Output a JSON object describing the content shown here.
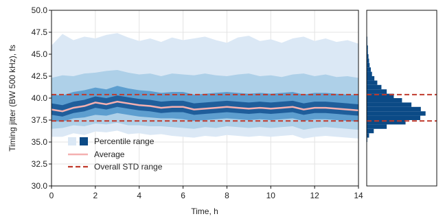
{
  "chart_data": {
    "type": "area",
    "xlabel": "Time, h",
    "ylabel": "Timing jitter (BW 500 kHz), fs",
    "xlim": [
      0,
      14
    ],
    "ylim": [
      30.0,
      50.0
    ],
    "xticks": [
      0,
      2,
      4,
      6,
      8,
      10,
      12,
      14
    ],
    "xtick_labels": [
      "0",
      "2",
      "4",
      "6",
      "8",
      "10",
      "12",
      "14"
    ],
    "yticks": [
      30.0,
      32.5,
      35.0,
      37.5,
      40.0,
      42.5,
      45.0,
      47.5,
      50.0
    ],
    "ytick_labels": [
      "30.0",
      "32.5",
      "35.0",
      "37.5",
      "40.0",
      "42.5",
      "45.0",
      "47.5",
      "50.0"
    ],
    "grid": true,
    "legend_position": "lower-left",
    "legend": {
      "percentile_label": "Percentile range",
      "average_label": "Average",
      "std_label": "Overall STD range"
    },
    "colors": {
      "band_outer": "#dbe8f5",
      "band_2": "#aed0e8",
      "band_3": "#5d9ecf",
      "band_4": "#1f5e9b",
      "band_core": "#08306b",
      "average": "#f4b0b0",
      "std": "#c0392b",
      "histogram": "#0b4a86",
      "grid": "#e3e3e3"
    },
    "overall_std_range": [
      37.4,
      40.4
    ],
    "average": {
      "x": [
        0,
        0.5,
        1.0,
        1.5,
        2.0,
        2.5,
        3.0,
        3.5,
        4.0,
        4.5,
        5.0,
        5.5,
        6.0,
        6.5,
        7.0,
        7.5,
        8.0,
        8.5,
        9.0,
        9.5,
        10.0,
        10.5,
        11.0,
        11.5,
        12.0,
        12.5,
        13.0,
        13.5,
        14.0
      ],
      "y": [
        38.7,
        38.5,
        38.9,
        39.1,
        39.5,
        39.3,
        39.6,
        39.4,
        39.2,
        39.1,
        38.9,
        39.0,
        39.0,
        38.7,
        38.8,
        38.9,
        39.0,
        38.9,
        38.8,
        38.9,
        38.8,
        38.9,
        39.0,
        38.7,
        38.9,
        38.9,
        38.8,
        38.7,
        38.6
      ]
    },
    "percentile_bands": {
      "x": [
        0,
        0.5,
        1.0,
        1.5,
        2.0,
        2.5,
        3.0,
        3.5,
        4.0,
        4.5,
        5.0,
        5.5,
        6.0,
        6.5,
        7.0,
        7.5,
        8.0,
        8.5,
        9.0,
        9.5,
        10.0,
        10.5,
        11.0,
        11.5,
        12.0,
        12.5,
        13.0,
        13.5,
        14.0
      ],
      "p0_5": [
        35.6,
        35.6,
        36.0,
        35.8,
        36.2,
        36.1,
        36.3,
        35.9,
        36.0,
        35.8,
        35.9,
        35.7,
        35.6,
        35.5,
        35.7,
        35.6,
        35.8,
        35.7,
        35.6,
        35.7,
        35.6,
        35.7,
        35.8,
        35.4,
        35.6,
        35.7,
        35.6,
        35.5,
        35.4
      ],
      "p99_5": [
        46.0,
        47.3,
        46.6,
        47.0,
        46.8,
        47.2,
        47.4,
        46.9,
        46.5,
        46.8,
        46.4,
        46.9,
        46.6,
        46.8,
        47.0,
        46.6,
        46.3,
        46.9,
        47.1,
        46.5,
        46.7,
        46.3,
        46.8,
        47.0,
        46.5,
        46.8,
        46.4,
        46.6,
        46.2
      ],
      "p5": [
        36.5,
        36.6,
        36.9,
        36.8,
        37.1,
        37.0,
        37.2,
        36.9,
        36.9,
        36.8,
        36.8,
        36.7,
        36.6,
        36.5,
        36.7,
        36.6,
        36.8,
        36.7,
        36.6,
        36.7,
        36.6,
        36.7,
        36.8,
        36.4,
        36.6,
        36.7,
        36.6,
        36.5,
        36.4
      ],
      "p95": [
        42.3,
        42.6,
        42.5,
        42.8,
        42.9,
        43.1,
        43.2,
        42.9,
        42.7,
        42.8,
        42.5,
        42.8,
        42.7,
        42.6,
        42.8,
        42.6,
        42.5,
        42.7,
        42.8,
        42.5,
        42.6,
        42.4,
        42.7,
        42.8,
        42.5,
        42.7,
        42.4,
        42.5,
        42.3
      ],
      "p16": [
        37.4,
        37.3,
        37.7,
        37.8,
        38.1,
        38.0,
        38.3,
        38.1,
        37.9,
        37.8,
        37.7,
        37.7,
        37.6,
        37.4,
        37.5,
        37.6,
        37.7,
        37.6,
        37.5,
        37.6,
        37.5,
        37.6,
        37.7,
        37.4,
        37.6,
        37.6,
        37.5,
        37.4,
        37.3
      ],
      "p84": [
        40.4,
        40.3,
        40.7,
        40.9,
        41.2,
        41.0,
        41.4,
        41.1,
        40.9,
        40.8,
        40.6,
        40.7,
        40.7,
        40.4,
        40.5,
        40.6,
        40.7,
        40.6,
        40.5,
        40.6,
        40.5,
        40.6,
        40.7,
        40.4,
        40.6,
        40.6,
        40.5,
        40.4,
        40.3
      ],
      "p33": [
        38.1,
        37.9,
        38.3,
        38.5,
        38.9,
        38.7,
        39.0,
        38.8,
        38.6,
        38.5,
        38.3,
        38.4,
        38.4,
        38.1,
        38.2,
        38.3,
        38.4,
        38.3,
        38.2,
        38.3,
        38.2,
        38.3,
        38.4,
        38.1,
        38.3,
        38.3,
        38.2,
        38.1,
        38.0
      ],
      "p67": [
        39.4,
        39.2,
        39.6,
        39.8,
        40.2,
        40.0,
        40.3,
        40.1,
        39.9,
        39.8,
        39.6,
        39.7,
        39.7,
        39.4,
        39.5,
        39.6,
        39.7,
        39.6,
        39.5,
        39.6,
        39.5,
        39.6,
        39.7,
        39.4,
        39.6,
        39.6,
        39.5,
        39.4,
        39.3
      ]
    },
    "histogram": {
      "bin_edges": [
        35.0,
        35.5,
        36.0,
        36.5,
        37.0,
        37.5,
        38.0,
        38.5,
        39.0,
        39.5,
        40.0,
        40.5,
        41.0,
        41.5,
        42.0,
        42.5,
        43.0,
        43.5,
        44.0,
        44.5,
        45.0,
        45.5,
        46.0,
        46.5,
        47.0,
        47.5,
        48.0
      ],
      "counts": [
        1,
        4,
        12,
        34,
        66,
        91,
        100,
        92,
        76,
        60,
        46,
        34,
        25,
        18,
        13,
        9,
        7,
        5,
        4,
        3,
        2,
        2,
        1,
        1,
        0.5,
        0.5
      ]
    }
  }
}
